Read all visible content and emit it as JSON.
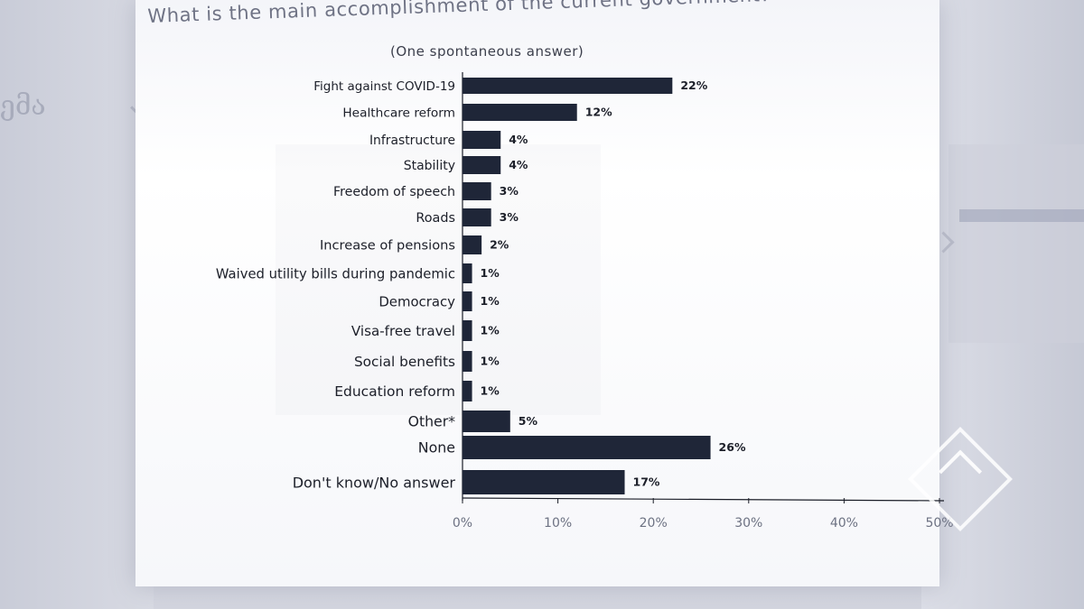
{
  "background": {
    "ghost_text": "ემა"
  },
  "chart_data": {
    "type": "bar",
    "orientation": "horizontal",
    "title": "What is the main accomplishment of the current government?",
    "subtitle": "(One spontaneous answer)",
    "categories": [
      "Fight against COVID-19",
      "Healthcare reform",
      "Infrastructure",
      "Stability",
      "Freedom of speech",
      "Roads",
      "Increase of pensions",
      "Waived utility bills during pandemic",
      "Democracy",
      "Visa-free travel",
      "Social benefits",
      "Education reform",
      "Other*",
      "None",
      "Don't know/No answer"
    ],
    "values": [
      22,
      12,
      4,
      4,
      3,
      3,
      2,
      1,
      1,
      1,
      1,
      1,
      5,
      26,
      17
    ],
    "value_labels": [
      "22%",
      "12%",
      "4%",
      "4%",
      "3%",
      "3%",
      "2%",
      "1%",
      "1%",
      "1%",
      "1%",
      "1%",
      "5%",
      "26%",
      "17%"
    ],
    "x_ticks": [
      "0%",
      "10%",
      "20%",
      "30%",
      "40%",
      "50%"
    ],
    "xlim": [
      0,
      50
    ],
    "grid": false,
    "bar_color": "#1f2638"
  }
}
